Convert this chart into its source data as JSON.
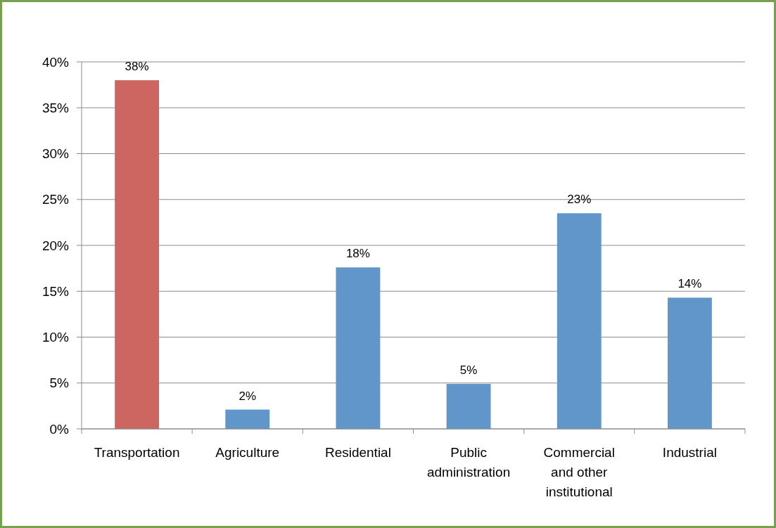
{
  "chart_data": {
    "type": "bar",
    "categories": [
      "Transportation",
      "Agriculture",
      "Residential",
      "Public administration",
      "Commercial and other institutional",
      "Industrial"
    ],
    "values": [
      38.0,
      2.1,
      17.6,
      4.9,
      23.5,
      14.3
    ],
    "colors": [
      "#cd6660",
      "#6096c9",
      "#6096c9",
      "#6096c9",
      "#6096c9",
      "#6096c9"
    ],
    "value_labels": [
      "38%",
      "2%",
      "18%",
      "5%",
      "23%",
      "14%"
    ],
    "ylim": [
      0,
      40
    ],
    "yticks": [
      {
        "value": 0,
        "label": "0%"
      },
      {
        "value": 5,
        "label": "5%"
      },
      {
        "value": 10,
        "label": "10%"
      },
      {
        "value": 15,
        "label": "15%"
      },
      {
        "value": 20,
        "label": "20%"
      },
      {
        "value": 25,
        "label": "25%"
      },
      {
        "value": 30,
        "label": "30%"
      },
      {
        "value": 35,
        "label": "35%"
      },
      {
        "value": 40,
        "label": "40%"
      }
    ],
    "grid": "y"
  }
}
